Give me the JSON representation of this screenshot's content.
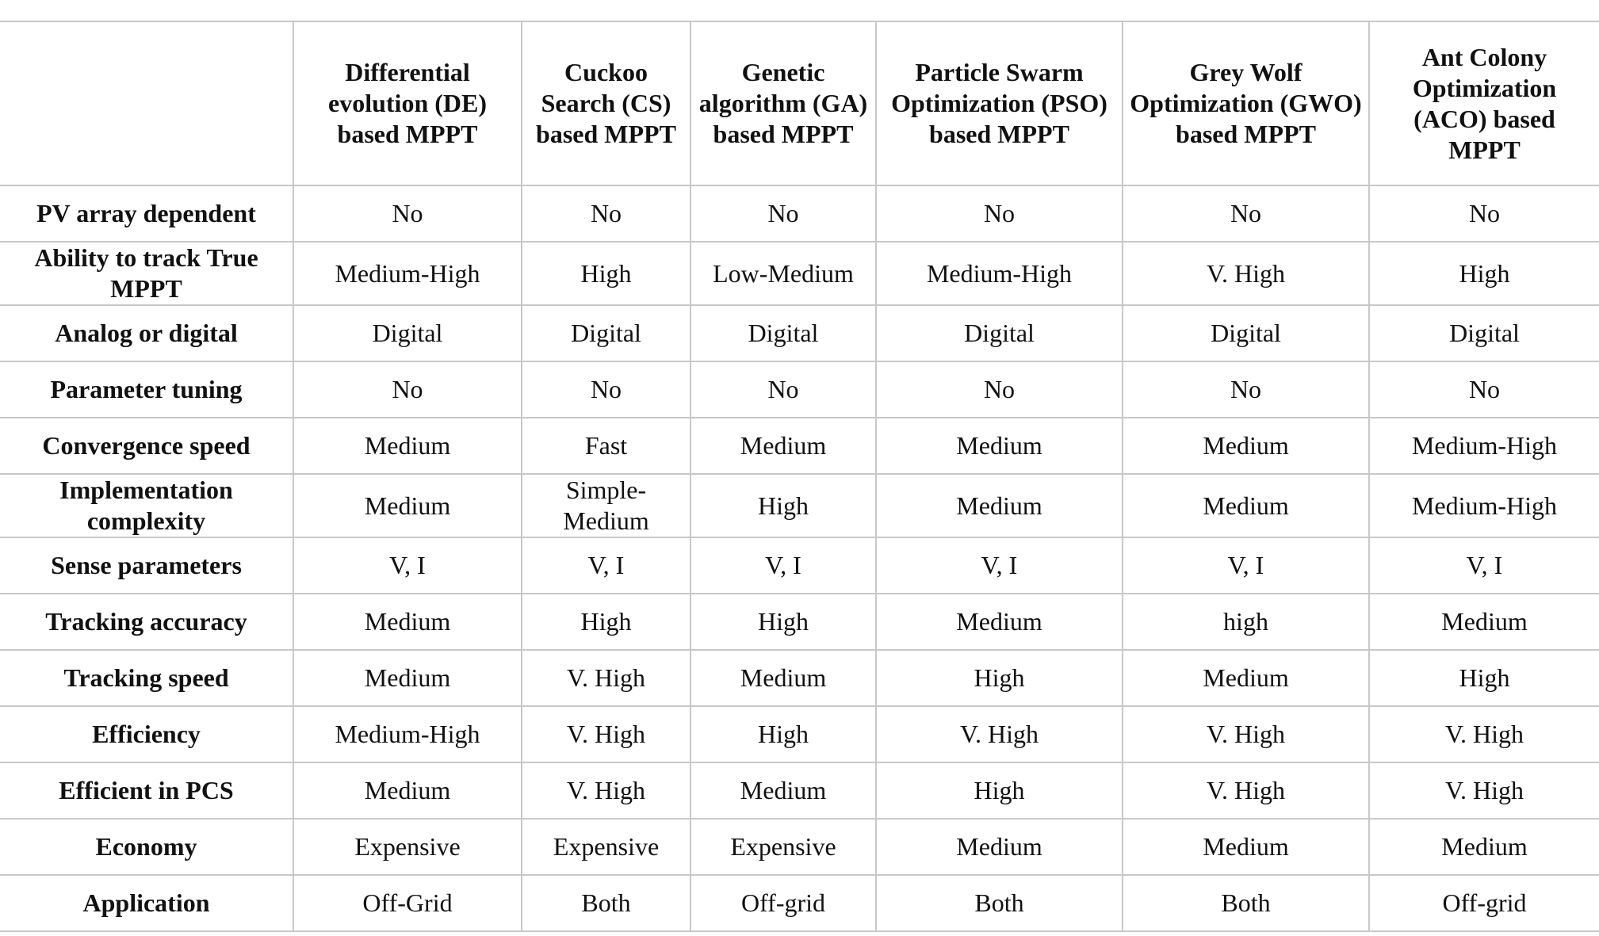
{
  "table": {
    "corner": "",
    "columns": [
      "Differential evolution (DE) based MPPT",
      "Cuckoo Search (CS) based MPPT",
      "Genetic algorithm (GA) based MPPT",
      "Particle Swarm Optimization (PSO) based MPPT",
      "Grey Wolf Optimization (GWO) based MPPT",
      "Ant Colony Optimization (ACO) based MPPT"
    ],
    "rows": [
      {
        "label": "PV array dependent",
        "cells": [
          "No",
          "No",
          "No",
          "No",
          "No",
          "No"
        ]
      },
      {
        "label": "Ability to track True MPPT",
        "cells": [
          "Medium-High",
          "High",
          "Low-Medium",
          "Medium-High",
          "V. High",
          "High"
        ]
      },
      {
        "label": "Analog or digital",
        "cells": [
          "Digital",
          "Digital",
          "Digital",
          "Digital",
          "Digital",
          "Digital"
        ]
      },
      {
        "label": "Parameter tuning",
        "cells": [
          "No",
          "No",
          "No",
          "No",
          "No",
          "No"
        ]
      },
      {
        "label": "Convergence speed",
        "cells": [
          "Medium",
          "Fast",
          "Medium",
          "Medium",
          "Medium",
          "Medium-High"
        ]
      },
      {
        "label": "Implementation complexity",
        "cells": [
          "Medium",
          "Simple-Medium",
          "High",
          "Medium",
          "Medium",
          "Medium-High"
        ]
      },
      {
        "label": "Sense parameters",
        "cells": [
          "V, I",
          "V, I",
          "V, I",
          "V, I",
          "V, I",
          "V, I"
        ]
      },
      {
        "label": "Tracking accuracy",
        "cells": [
          "Medium",
          "High",
          "High",
          "Medium",
          "high",
          "Medium"
        ]
      },
      {
        "label": "Tracking speed",
        "cells": [
          "Medium",
          "V. High",
          "Medium",
          "High",
          "Medium",
          "High"
        ]
      },
      {
        "label": "Efficiency",
        "cells": [
          "Medium-High",
          "V. High",
          "High",
          "V. High",
          "V. High",
          "V. High"
        ]
      },
      {
        "label": "Efficient in PCS",
        "cells": [
          "Medium",
          "V. High",
          "Medium",
          "High",
          "V. High",
          "V. High"
        ]
      },
      {
        "label": "Economy",
        "cells": [
          "Expensive",
          "Expensive",
          "Expensive",
          "Medium",
          "Medium",
          "Medium"
        ]
      },
      {
        "label": "Application",
        "cells": [
          "Off-Grid",
          "Both",
          "Off-grid",
          "Both",
          "Both",
          "Off-grid"
        ]
      }
    ]
  }
}
